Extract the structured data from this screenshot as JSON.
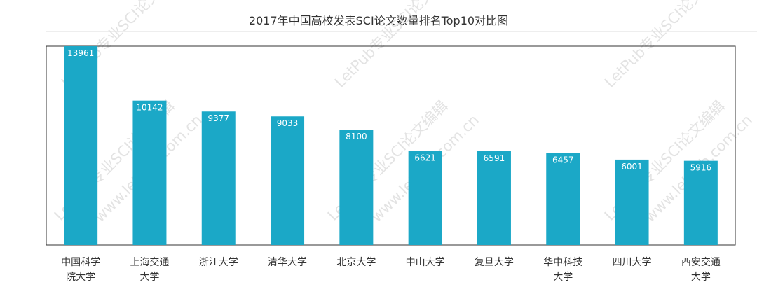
{
  "watermark": {
    "brand": "LetPub专业SCI论文编辑",
    "url": "www.letpub.com.cn"
  },
  "chart_data": {
    "type": "bar",
    "title": "2017年中国高校发表SCI论文数量排名Top10对比图",
    "xlabel": "",
    "ylabel": "",
    "ylim": [
      0,
      13961
    ],
    "grid": false,
    "bar_color": "#1ba8c7",
    "categories": [
      [
        "中国科学",
        "院大学"
      ],
      [
        "上海交通",
        "大学"
      ],
      [
        "浙江大学"
      ],
      [
        "清华大学"
      ],
      [
        "北京大学"
      ],
      [
        "中山大学"
      ],
      [
        "复旦大学"
      ],
      [
        "华中科技",
        "大学"
      ],
      [
        "四川大学"
      ],
      [
        "西安交通",
        "大学"
      ]
    ],
    "values": [
      13961,
      10142,
      9377,
      9033,
      8100,
      6621,
      6591,
      6457,
      6001,
      5916
    ]
  }
}
